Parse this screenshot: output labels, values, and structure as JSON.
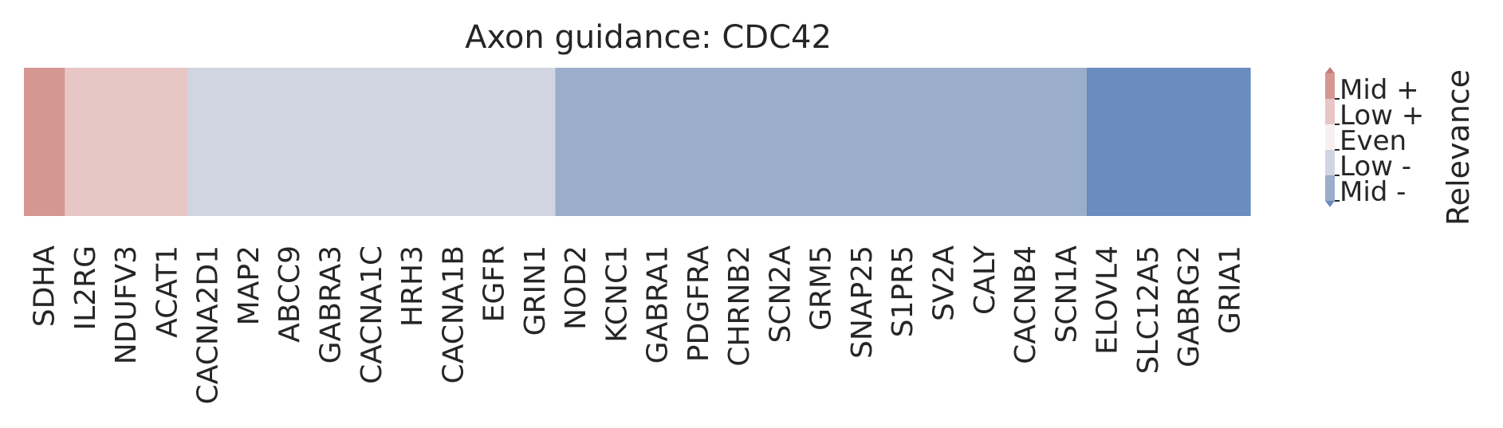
{
  "chart_data": {
    "type": "heatmap",
    "title": "Axon guidance: CDC42",
    "categories": [
      "SDHA",
      "IL2RG",
      "NDUFV3",
      "ACAT1",
      "CACNA2D1",
      "MAP2",
      "ABCC9",
      "GABRA3",
      "CACNA1C",
      "HRH3",
      "CACNA1B",
      "EGFR",
      "GRIN1",
      "NOD2",
      "KCNC1",
      "GABRA1",
      "PDGFRA",
      "CHRNB2",
      "SCN2A",
      "GRM5",
      "SNAP25",
      "S1PR5",
      "SV2A",
      "CALY",
      "CACNB4",
      "SCN1A",
      "ELOVL4",
      "SLC12A5",
      "GABRG2",
      "GRIA1"
    ],
    "levels": [
      "Mid +",
      "Low +",
      "Low +",
      "Low +",
      "Low -",
      "Low -",
      "Low -",
      "Low -",
      "Low -",
      "Low -",
      "Low -",
      "Low -",
      "Low -",
      "Mid -",
      "Mid -",
      "Mid -",
      "Mid -",
      "Mid -",
      "Mid -",
      "Mid -",
      "Mid -",
      "Mid -",
      "Mid -",
      "Mid -",
      "Mid -",
      "Mid -",
      "High -",
      "High -",
      "High -",
      "High -"
    ],
    "colorbar": {
      "label": "Relevance",
      "ticks": [
        "Mid +",
        "Low +",
        "Even",
        "Low -",
        "Mid -"
      ],
      "colors": {
        "High +": "#c97b7b",
        "Mid +": "#d59792",
        "Low +": "#e8c6c6",
        "Even": "#f8f0f0",
        "Low -": "#d0d5e1",
        "Mid -": "#9aaecb",
        "High -": "#6a8cbf"
      }
    }
  }
}
